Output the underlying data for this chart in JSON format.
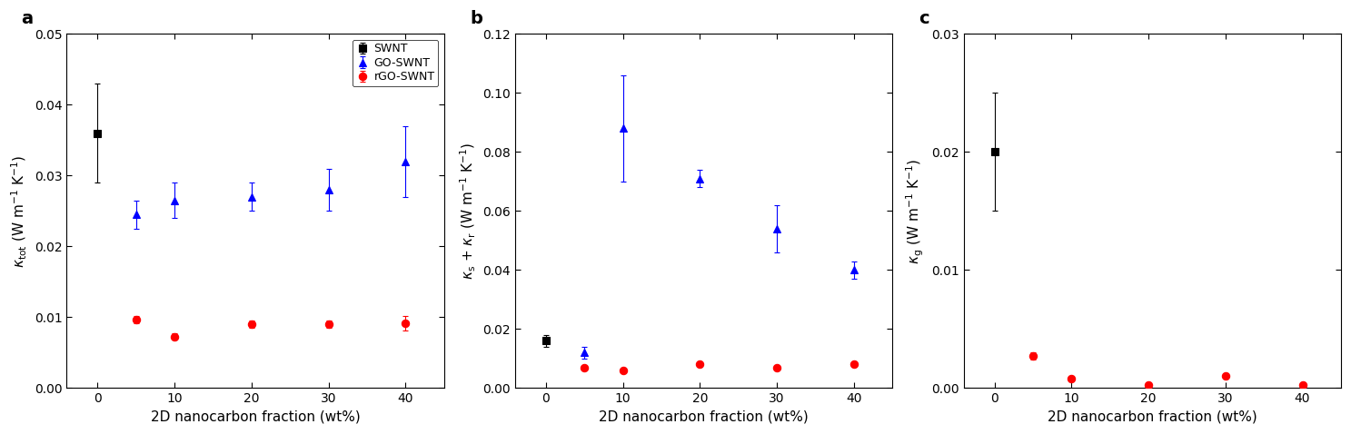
{
  "x_ticks": [
    0,
    10,
    20,
    30,
    40
  ],
  "x_label": "2D nanocarbon fraction (wt%)",
  "panel_a": {
    "label": "a",
    "ylabel": "$\\it{\\kappa}$$_{\\rm tot}$ (W m$^{-1}$ K$^{-1}$)",
    "ylim": [
      0,
      0.05
    ],
    "yticks": [
      0.0,
      0.01,
      0.02,
      0.03,
      0.04,
      0.05
    ],
    "swnt": {
      "x": [
        0
      ],
      "y": [
        0.036
      ],
      "yerr": [
        0.007
      ],
      "color": "#000000",
      "marker": "s",
      "label": "SWNT"
    },
    "go_swnt": {
      "x": [
        5,
        10,
        20,
        30,
        40
      ],
      "y": [
        0.0245,
        0.0265,
        0.027,
        0.028,
        0.032
      ],
      "yerr": [
        0.002,
        0.0025,
        0.002,
        0.003,
        0.005
      ],
      "color": "#0000FF",
      "marker": "^",
      "label": "GO-SWNT"
    },
    "rgo_swnt": {
      "x": [
        5,
        10,
        20,
        30,
        40
      ],
      "y": [
        0.0097,
        0.0073,
        0.009,
        0.009,
        0.0092
      ],
      "yerr": [
        0.0005,
        0.0005,
        0.0005,
        0.0005,
        0.001
      ],
      "color": "#FF0000",
      "marker": "o",
      "label": "rGO-SWNT"
    }
  },
  "panel_b": {
    "label": "b",
    "ylabel": "$\\it{\\kappa}$$_{\\rm s}$ + $\\it{\\kappa}$$_{\\rm r}$ (W m$^{-1}$ K$^{-1}$)",
    "ylim": [
      0,
      0.12
    ],
    "yticks": [
      0.0,
      0.02,
      0.04,
      0.06,
      0.08,
      0.1,
      0.12
    ],
    "swnt": {
      "x": [
        0
      ],
      "y": [
        0.016
      ],
      "yerr": [
        0.002
      ],
      "color": "#000000",
      "marker": "s",
      "label": "SWNT"
    },
    "go_swnt": {
      "x": [
        5,
        10,
        20,
        30,
        40
      ],
      "y": [
        0.012,
        0.088,
        0.071,
        0.054,
        0.04
      ],
      "yerr": [
        0.002,
        0.018,
        0.003,
        0.008,
        0.003
      ],
      "color": "#0000FF",
      "marker": "^",
      "label": "GO-SWNT"
    },
    "rgo_swnt": {
      "x": [
        5,
        10,
        20,
        30,
        40
      ],
      "y": [
        0.007,
        0.006,
        0.008,
        0.007,
        0.008
      ],
      "yerr": [
        0.0005,
        0.0005,
        0.0005,
        0.0005,
        0.0005
      ],
      "color": "#FF0000",
      "marker": "o",
      "label": "rGO-SWNT"
    }
  },
  "panel_c": {
    "label": "c",
    "ylabel": "$\\it{\\kappa}$$_{\\rm g}$ (W m$^{-1}$ K$^{-1}$)",
    "ylim": [
      0,
      0.03
    ],
    "yticks": [
      0.0,
      0.01,
      0.02,
      0.03
    ],
    "swnt": {
      "x": [
        0
      ],
      "y": [
        0.02
      ],
      "yerr": [
        0.005
      ],
      "color": "#000000",
      "marker": "s",
      "label": "SWNT"
    },
    "rgo_swnt": {
      "x": [
        5,
        10,
        20,
        30,
        40
      ],
      "y": [
        0.0027,
        0.0008,
        0.0003,
        0.001,
        0.0003
      ],
      "yerr": [
        0.0003,
        0.0002,
        0.0001,
        0.0002,
        0.0001
      ],
      "color": "#FF0000",
      "marker": "o",
      "label": "rGO-SWNT"
    }
  },
  "marker_size": 6,
  "capsize": 2.5,
  "elinewidth": 0.8,
  "label_font_size": 11,
  "tick_font_size": 10,
  "panel_label_fontsize": 14
}
